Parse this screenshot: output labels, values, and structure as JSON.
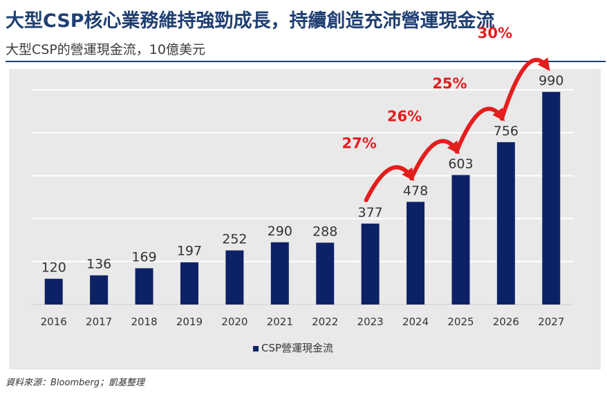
{
  "header": {
    "title": "大型CSP核心業務維持強勁成長，持續創造充沛營運現金流",
    "subtitle": "大型CSP的營運現金流，10億美元"
  },
  "footer": {
    "source": "資料來源：Bloomberg；凱基整理"
  },
  "colors": {
    "bar": "#0d2266",
    "growth": "#e41d1d",
    "title": "#1f3f72",
    "panel": "#e9e9e9",
    "grid": "#ffffff"
  },
  "chart_data": {
    "type": "bar",
    "title": "大型CSP的營運現金流，10億美元",
    "xlabel": "",
    "ylabel": "",
    "categories": [
      "2016",
      "2017",
      "2018",
      "2019",
      "2020",
      "2021",
      "2022",
      "2023",
      "2024",
      "2025",
      "2026",
      "2027"
    ],
    "series": [
      {
        "name": "CSP營運現金流",
        "values": [
          120,
          136,
          169,
          197,
          252,
          290,
          288,
          377,
          478,
          603,
          756,
          990
        ],
        "labels": [
          "120",
          "136",
          "169",
          "197",
          "252",
          "290",
          "288",
          "377",
          "478",
          "603",
          "756",
          "990"
        ]
      }
    ],
    "ylim": [
      0,
      1000
    ],
    "grid": true,
    "legend": "bottom-center",
    "annotations": [
      {
        "text": "27%",
        "from": "2023",
        "to": "2024"
      },
      {
        "text": "26%",
        "from": "2024",
        "to": "2025"
      },
      {
        "text": "25%",
        "from": "2025",
        "to": "2026"
      },
      {
        "text": "30%",
        "from": "2026",
        "to": "2027"
      }
    ]
  }
}
